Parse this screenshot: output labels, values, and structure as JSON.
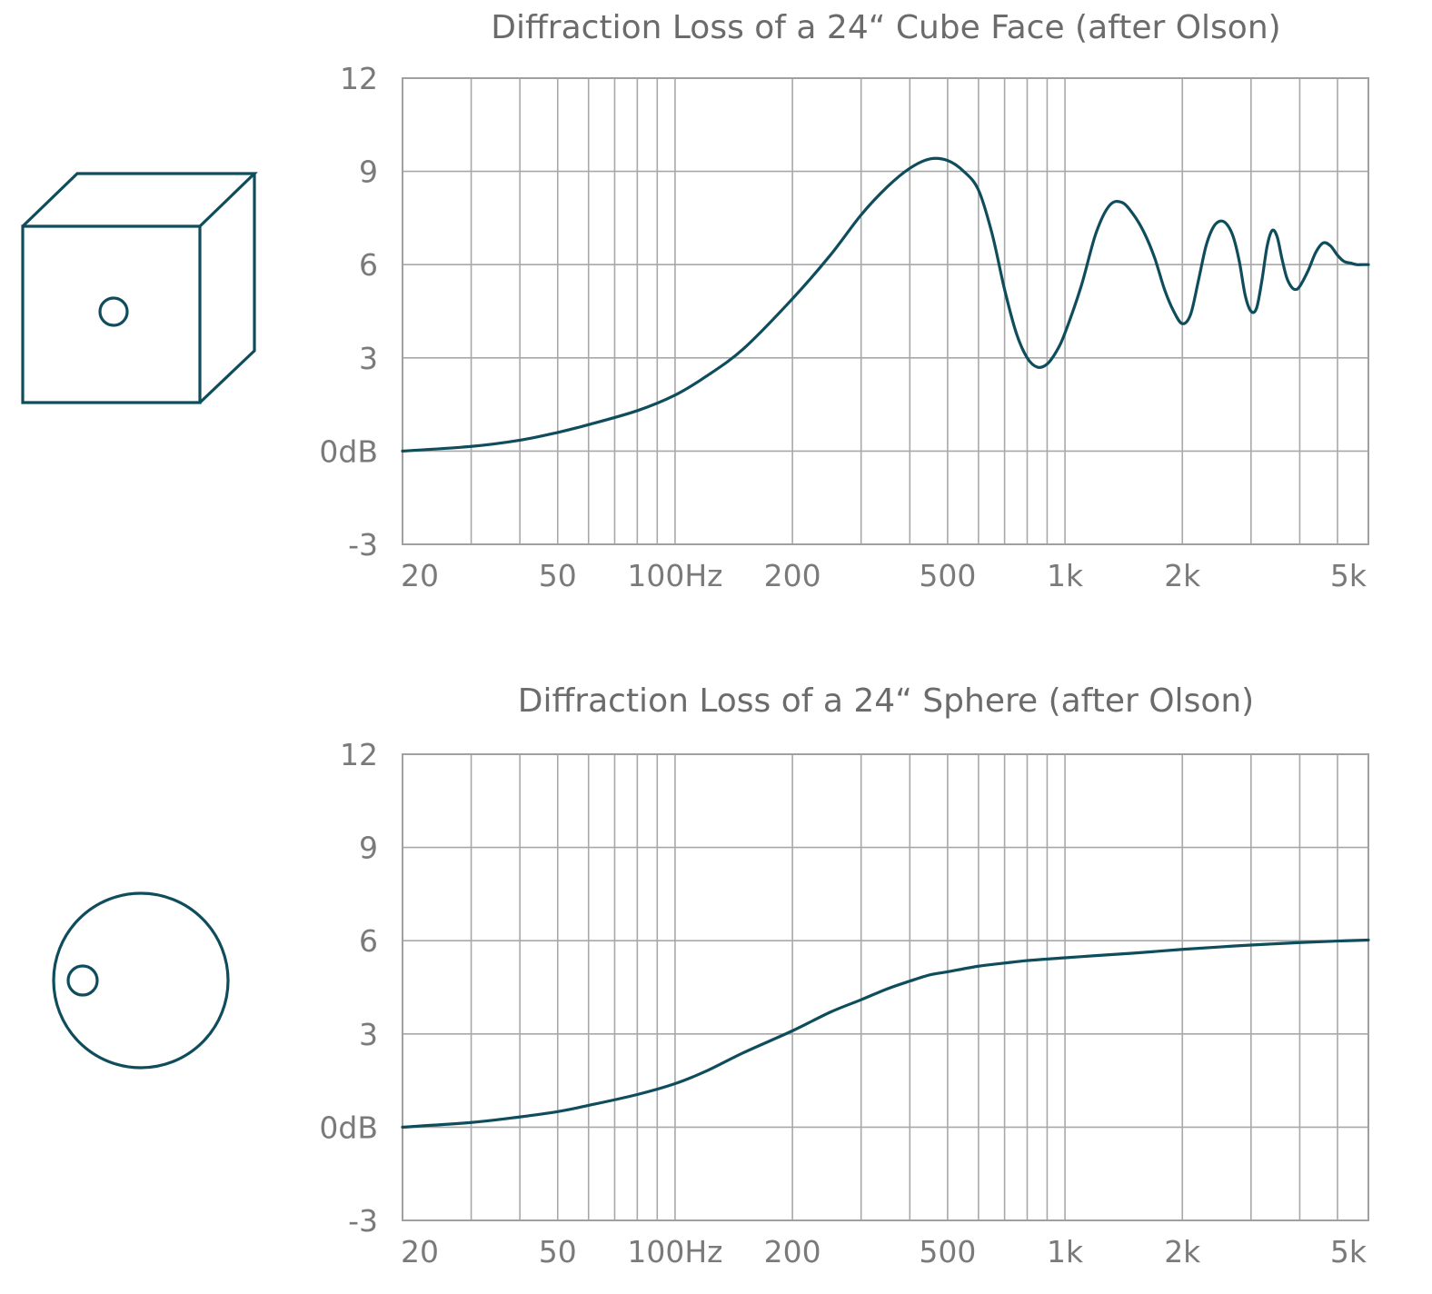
{
  "colors": {
    "curve": "#0f4d5c",
    "grid": "#a8a8a8",
    "text": "#6b6b6b"
  },
  "icons": {
    "top": "cube-with-driver-icon",
    "bottom": "sphere-with-driver-icon"
  },
  "chart_data": [
    {
      "type": "line",
      "title": "Diffraction Loss of a 24“ Cube Face (after Olson)",
      "xscale": "log",
      "xlim": [
        20,
        6000
      ],
      "ylim": [
        -3,
        12
      ],
      "yticks": [
        12,
        9,
        6,
        3,
        0,
        -3
      ],
      "ytick_labels": [
        "12",
        "9",
        "6",
        "3",
        "0dB",
        "-3"
      ],
      "xticks": [
        20,
        50,
        100,
        200,
        500,
        1000,
        2000,
        5000
      ],
      "xtick_labels": [
        "20",
        "50",
        "100Hz",
        "200",
        "500",
        "1k",
        "2k",
        "5k"
      ],
      "grid": true,
      "series": [
        {
          "x": [
            20,
            30,
            40,
            50,
            60,
            80,
            100,
            120,
            150,
            200,
            250,
            300,
            350,
            400,
            450,
            500,
            550,
            600,
            650,
            700,
            750,
            800,
            850,
            900,
            950,
            1000,
            1100,
            1200,
            1300,
            1400,
            1500,
            1600,
            1700,
            1800,
            1900,
            2000,
            2100,
            2200,
            2300,
            2400,
            2500,
            2600,
            2700,
            2800,
            2900,
            3000,
            3100,
            3200,
            3300,
            3400,
            3500,
            3600,
            3700,
            3800,
            3900,
            4000,
            4200,
            4400,
            4600,
            4800,
            5000,
            5200,
            5400,
            5600,
            5800,
            6000
          ],
          "y": [
            0,
            0.15,
            0.35,
            0.6,
            0.85,
            1.3,
            1.8,
            2.4,
            3.3,
            4.9,
            6.3,
            7.6,
            8.5,
            9.1,
            9.4,
            9.35,
            9.0,
            8.4,
            7.0,
            5.2,
            3.8,
            3.0,
            2.7,
            2.8,
            3.2,
            3.8,
            5.3,
            7.0,
            7.9,
            8.0,
            7.6,
            7.0,
            6.2,
            5.2,
            4.5,
            4.1,
            4.4,
            5.5,
            6.6,
            7.2,
            7.4,
            7.3,
            6.9,
            6.1,
            5.0,
            4.5,
            4.6,
            5.5,
            6.6,
            7.1,
            6.9,
            6.2,
            5.6,
            5.3,
            5.2,
            5.3,
            5.8,
            6.4,
            6.7,
            6.6,
            6.3,
            6.1,
            6.05,
            6.0,
            6.0,
            6.0
          ]
        }
      ]
    },
    {
      "type": "line",
      "title": "Diffraction Loss of a 24“ Sphere (after Olson)",
      "xscale": "log",
      "xlim": [
        20,
        6000
      ],
      "ylim": [
        -3,
        12
      ],
      "yticks": [
        12,
        9,
        6,
        3,
        0,
        -3
      ],
      "ytick_labels": [
        "12",
        "9",
        "6",
        "3",
        "0dB",
        "-3"
      ],
      "xticks": [
        20,
        50,
        100,
        200,
        500,
        1000,
        2000,
        5000
      ],
      "xtick_labels": [
        "20",
        "50",
        "100Hz",
        "200",
        "500",
        "1k",
        "2k",
        "5k"
      ],
      "grid": true,
      "series": [
        {
          "x": [
            20,
            30,
            40,
            50,
            60,
            80,
            100,
            120,
            150,
            200,
            250,
            300,
            350,
            400,
            450,
            500,
            600,
            700,
            800,
            1000,
            1200,
            1500,
            2000,
            2500,
            3000,
            4000,
            5000,
            6000
          ],
          "y": [
            0,
            0.15,
            0.33,
            0.5,
            0.7,
            1.05,
            1.4,
            1.8,
            2.4,
            3.1,
            3.7,
            4.1,
            4.45,
            4.7,
            4.9,
            5.0,
            5.18,
            5.28,
            5.36,
            5.45,
            5.52,
            5.6,
            5.72,
            5.8,
            5.86,
            5.94,
            5.99,
            6.02
          ]
        }
      ]
    }
  ]
}
